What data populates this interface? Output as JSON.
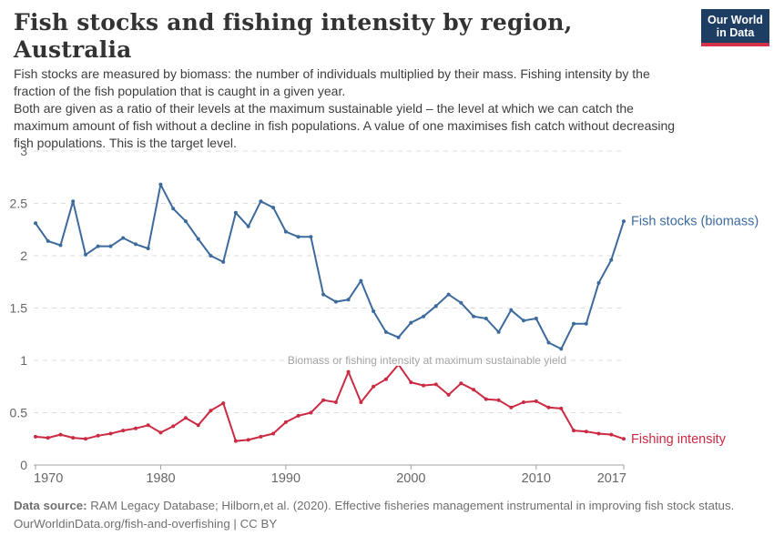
{
  "header": {
    "title": "Fish stocks and fishing intensity by region, Australia",
    "logo": {
      "line1": "Our World",
      "line2": "in Data"
    }
  },
  "subtitle": {
    "para1": "Fish stocks are measured by biomass: the number of individuals multiplied by their mass. Fishing intensity by the fraction of the fish population that is caught in a given year.",
    "para2": "Both are given as a ratio of their levels at the maximum sustainable yield – the level at which we can catch the maximum amount of fish without a decline in fish populations. A value of one maximises fish catch without decreasing fish populations. This is the target level."
  },
  "chart_data": {
    "type": "line",
    "title": "Fish stocks and fishing intensity by region, Australia",
    "xlabel": "",
    "ylabel": "",
    "ylim": [
      0,
      3
    ],
    "yticks": [
      0,
      0.5,
      1,
      1.5,
      2,
      2.5,
      3
    ],
    "ytick_labels": [
      "0",
      "0.5",
      "1",
      "1.5",
      "2",
      "2.5",
      "3"
    ],
    "xticks": [
      1970,
      1980,
      1990,
      2000,
      2010,
      2017
    ],
    "grid": "horizontal-dashed",
    "legend_position": "line-end-labels",
    "x": [
      1970,
      1971,
      1972,
      1973,
      1974,
      1975,
      1976,
      1977,
      1978,
      1979,
      1980,
      1981,
      1982,
      1983,
      1984,
      1985,
      1986,
      1987,
      1988,
      1989,
      1990,
      1991,
      1992,
      1993,
      1994,
      1995,
      1996,
      1997,
      1998,
      1999,
      2000,
      2001,
      2002,
      2003,
      2004,
      2005,
      2006,
      2007,
      2008,
      2009,
      2010,
      2011,
      2012,
      2013,
      2014,
      2015,
      2016,
      2017
    ],
    "series": [
      {
        "name": "Fish stocks (biomass)",
        "color": "#3c6a9d",
        "values": [
          2.31,
          2.14,
          2.1,
          2.52,
          2.01,
          2.09,
          2.09,
          2.17,
          2.11,
          2.07,
          2.68,
          2.45,
          2.33,
          2.16,
          2.0,
          1.94,
          2.41,
          2.28,
          2.52,
          2.46,
          2.23,
          2.18,
          2.18,
          1.63,
          1.56,
          1.58,
          1.76,
          1.47,
          1.27,
          1.22,
          1.36,
          1.42,
          1.52,
          1.63,
          1.55,
          1.42,
          1.4,
          1.27,
          1.48,
          1.38,
          1.4,
          1.17,
          1.11,
          1.35,
          1.35,
          1.74,
          1.96,
          2.33
        ]
      },
      {
        "name": "Fishing intensity",
        "color": "#cb2a43",
        "values": [
          0.27,
          0.26,
          0.29,
          0.26,
          0.25,
          0.28,
          0.3,
          0.33,
          0.35,
          0.38,
          0.31,
          0.37,
          0.45,
          0.38,
          0.52,
          0.59,
          0.23,
          0.24,
          0.27,
          0.3,
          0.41,
          0.47,
          0.5,
          0.62,
          0.6,
          0.89,
          0.6,
          0.75,
          0.82,
          0.96,
          0.79,
          0.76,
          0.77,
          0.67,
          0.78,
          0.72,
          0.63,
          0.62,
          0.55,
          0.6,
          0.61,
          0.55,
          0.54,
          0.33,
          0.32,
          0.3,
          0.29,
          0.25
        ]
      }
    ],
    "annotation": {
      "text": "Biomass or fishing intensity at maximum sustainable yield",
      "y": 1
    }
  },
  "footer": {
    "source_label": "Data source:",
    "source_text": " RAM Legacy Database; Hilborn,et al. (2020). Effective fisheries management instrumental in improving fish stock status.",
    "line2": "OurWorldinData.org/fish-and-overfishing | CC BY"
  },
  "colors": {
    "fish_stocks": "#3c6a9d",
    "fishing_intensity": "#cb2a43",
    "gridline": "#dcdcdc",
    "axis": "#a0a0a0",
    "tick_text": "#666666",
    "annotation_text": "#a3a3a3",
    "logo_bg": "#1d3d63",
    "logo_bar": "#d0334a"
  }
}
